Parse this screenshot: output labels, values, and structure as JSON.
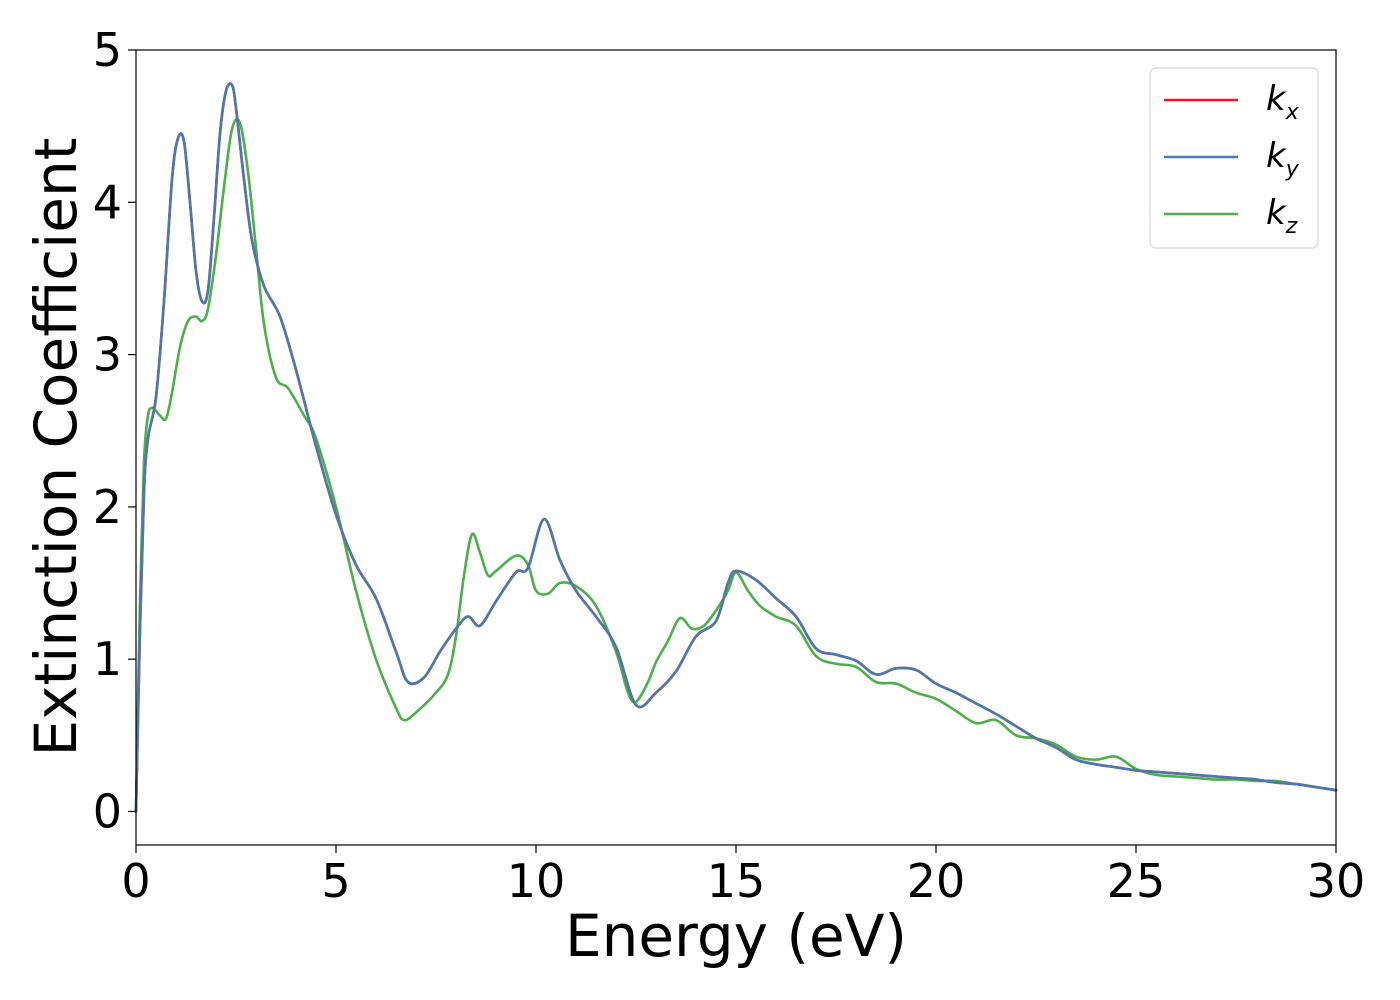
{
  "chart_data": {
    "type": "line",
    "title": "",
    "xlabel": "Energy (eV)",
    "ylabel": "Extinction Coefficient",
    "xlim": [
      0,
      30
    ],
    "ylim": [
      -0.22,
      5
    ],
    "xticks": [
      0,
      5,
      10,
      15,
      20,
      25,
      30
    ],
    "yticks": [
      0,
      1,
      2,
      3,
      4,
      5
    ],
    "grid": false,
    "legend_position": "top-right",
    "series": [
      {
        "name": "k_x",
        "legend_base": "k",
        "legend_sub": "x",
        "color": "#e41a1c",
        "x": [
          0,
          0.1,
          0.2,
          0.3,
          0.5,
          0.7,
          0.9,
          1.05,
          1.2,
          1.35,
          1.5,
          1.65,
          1.8,
          1.95,
          2.1,
          2.25,
          2.4,
          2.5,
          2.7,
          2.9,
          3.2,
          3.6,
          4.0,
          4.5,
          5.0,
          5.5,
          6.0,
          6.5,
          6.8,
          7.2,
          7.6,
          8.0,
          8.3,
          8.6,
          9.0,
          9.5,
          9.8,
          10.2,
          10.6,
          11.0,
          11.5,
          12.0,
          12.5,
          13.0,
          13.5,
          14.0,
          14.5,
          14.8,
          15.0,
          15.5,
          16.0,
          16.5,
          17.0,
          17.5,
          18.0,
          18.5,
          19.0,
          19.5,
          20.0,
          20.5,
          21.0,
          21.5,
          22.0,
          22.5,
          23.0,
          23.5,
          24.0,
          24.5,
          25.0,
          25.5,
          26.0,
          26.5,
          27.0,
          27.5,
          28.0,
          28.5,
          29.0,
          29.5,
          30.0
        ],
        "y": [
          0.0,
          1.2,
          2.1,
          2.45,
          2.72,
          3.35,
          4.15,
          4.42,
          4.4,
          4.0,
          3.55,
          3.35,
          3.42,
          3.9,
          4.45,
          4.73,
          4.77,
          4.62,
          4.15,
          3.75,
          3.45,
          3.25,
          2.9,
          2.4,
          1.95,
          1.62,
          1.4,
          1.05,
          0.85,
          0.88,
          1.05,
          1.2,
          1.28,
          1.22,
          1.38,
          1.57,
          1.6,
          1.92,
          1.65,
          1.45,
          1.28,
          1.08,
          0.7,
          0.78,
          0.92,
          1.15,
          1.25,
          1.5,
          1.58,
          1.52,
          1.4,
          1.28,
          1.07,
          1.03,
          0.99,
          0.9,
          0.94,
          0.93,
          0.84,
          0.78,
          0.71,
          0.64,
          0.56,
          0.48,
          0.42,
          0.34,
          0.31,
          0.29,
          0.27,
          0.26,
          0.25,
          0.24,
          0.23,
          0.22,
          0.21,
          0.19,
          0.18,
          0.16,
          0.14
        ]
      },
      {
        "name": "k_y",
        "legend_base": "k",
        "legend_sub": "y",
        "color": "#4a79ad",
        "x": [
          0,
          0.1,
          0.2,
          0.3,
          0.5,
          0.7,
          0.9,
          1.05,
          1.2,
          1.35,
          1.5,
          1.65,
          1.8,
          1.95,
          2.1,
          2.25,
          2.4,
          2.5,
          2.7,
          2.9,
          3.2,
          3.6,
          4.0,
          4.5,
          5.0,
          5.5,
          6.0,
          6.5,
          6.8,
          7.2,
          7.6,
          8.0,
          8.3,
          8.6,
          9.0,
          9.5,
          9.8,
          10.2,
          10.6,
          11.0,
          11.5,
          12.0,
          12.5,
          13.0,
          13.5,
          14.0,
          14.5,
          14.8,
          15.0,
          15.5,
          16.0,
          16.5,
          17.0,
          17.5,
          18.0,
          18.5,
          19.0,
          19.5,
          20.0,
          20.5,
          21.0,
          21.5,
          22.0,
          22.5,
          23.0,
          23.5,
          24.0,
          24.5,
          25.0,
          25.5,
          26.0,
          26.5,
          27.0,
          27.5,
          28.0,
          28.5,
          29.0,
          29.5,
          30.0
        ],
        "y": [
          0.0,
          1.2,
          2.1,
          2.45,
          2.72,
          3.35,
          4.15,
          4.42,
          4.4,
          4.0,
          3.55,
          3.35,
          3.42,
          3.9,
          4.45,
          4.73,
          4.77,
          4.62,
          4.15,
          3.75,
          3.45,
          3.25,
          2.9,
          2.4,
          1.95,
          1.62,
          1.4,
          1.05,
          0.85,
          0.88,
          1.05,
          1.2,
          1.28,
          1.22,
          1.38,
          1.57,
          1.6,
          1.92,
          1.65,
          1.45,
          1.28,
          1.08,
          0.7,
          0.78,
          0.92,
          1.15,
          1.25,
          1.5,
          1.58,
          1.52,
          1.4,
          1.28,
          1.07,
          1.03,
          0.99,
          0.9,
          0.94,
          0.93,
          0.84,
          0.78,
          0.71,
          0.64,
          0.56,
          0.48,
          0.42,
          0.34,
          0.31,
          0.29,
          0.27,
          0.26,
          0.25,
          0.24,
          0.23,
          0.22,
          0.21,
          0.19,
          0.18,
          0.16,
          0.14
        ]
      },
      {
        "name": "k_z",
        "legend_base": "k",
        "legend_sub": "z",
        "color": "#4daf4a",
        "x": [
          0,
          0.1,
          0.2,
          0.3,
          0.4,
          0.5,
          0.6,
          0.75,
          0.9,
          1.1,
          1.3,
          1.5,
          1.65,
          1.8,
          2.0,
          2.2,
          2.4,
          2.6,
          2.8,
          3.0,
          3.2,
          3.5,
          3.8,
          4.2,
          4.5,
          5.0,
          5.5,
          6.0,
          6.5,
          6.7,
          7.0,
          7.5,
          7.8,
          8.0,
          8.2,
          8.4,
          8.6,
          8.8,
          9.0,
          9.5,
          9.8,
          10.0,
          10.3,
          10.6,
          11.0,
          11.5,
          12.0,
          12.3,
          12.5,
          12.8,
          13.0,
          13.3,
          13.6,
          13.9,
          14.2,
          14.5,
          14.8,
          15.0,
          15.3,
          15.6,
          16.0,
          16.5,
          17.0,
          17.5,
          18.0,
          18.5,
          19.0,
          19.5,
          20.0,
          20.5,
          21.0,
          21.5,
          22.0,
          22.5,
          23.0,
          23.5,
          24.0,
          24.5,
          25.0,
          25.5,
          26.0,
          26.5,
          27.0,
          27.5,
          28.0,
          28.5,
          29.0,
          29.5,
          30.0
        ],
        "y": [
          0.0,
          1.4,
          2.3,
          2.6,
          2.65,
          2.63,
          2.6,
          2.58,
          2.75,
          3.05,
          3.22,
          3.25,
          3.22,
          3.3,
          3.65,
          4.1,
          4.48,
          4.52,
          4.2,
          3.7,
          3.2,
          2.85,
          2.78,
          2.6,
          2.45,
          2.0,
          1.45,
          1.0,
          0.68,
          0.6,
          0.65,
          0.78,
          0.9,
          1.15,
          1.55,
          1.82,
          1.7,
          1.55,
          1.58,
          1.68,
          1.62,
          1.45,
          1.43,
          1.5,
          1.48,
          1.35,
          1.05,
          0.78,
          0.72,
          0.85,
          0.98,
          1.12,
          1.27,
          1.2,
          1.22,
          1.32,
          1.45,
          1.57,
          1.45,
          1.35,
          1.28,
          1.22,
          1.02,
          0.97,
          0.95,
          0.85,
          0.84,
          0.78,
          0.74,
          0.66,
          0.58,
          0.6,
          0.5,
          0.48,
          0.44,
          0.36,
          0.34,
          0.36,
          0.28,
          0.24,
          0.23,
          0.22,
          0.21,
          0.21,
          0.2,
          0.2,
          0.18,
          0.16,
          0.14
        ]
      }
    ]
  }
}
